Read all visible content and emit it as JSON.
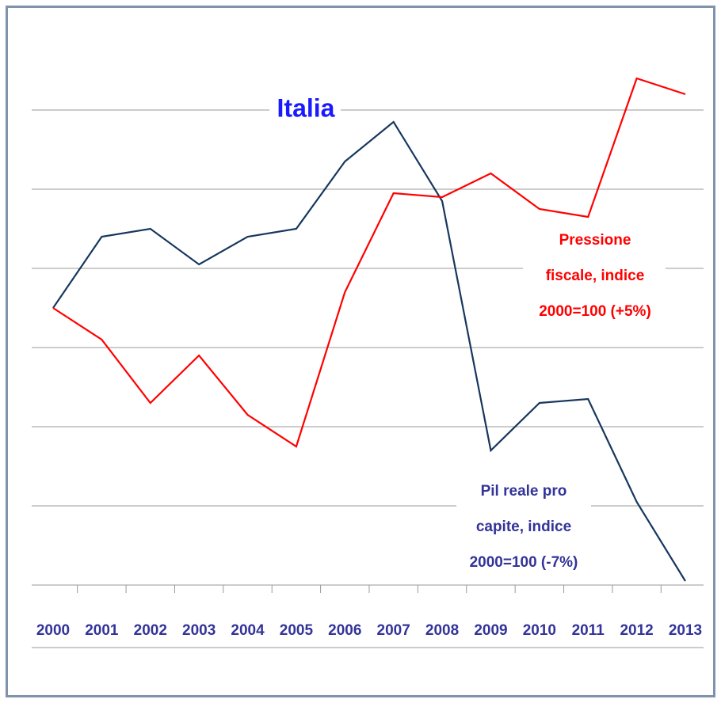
{
  "chart_data": {
    "type": "line",
    "title": "Italia",
    "categories": [
      "2000",
      "2001",
      "2002",
      "2003",
      "2004",
      "2005",
      "2006",
      "2007",
      "2008",
      "2009",
      "2010",
      "2011",
      "2012",
      "2013"
    ],
    "series": [
      {
        "color": "#17375e",
        "values": [
          100,
          101.8,
          102.0,
          101.1,
          101.8,
          102.0,
          103.7,
          104.7,
          102.7,
          96.4,
          97.6,
          97.7,
          95.1,
          93.1
        ]
      },
      {
        "color": "#ff0000",
        "values": [
          100,
          99.2,
          97.6,
          98.8,
          97.3,
          96.5,
          100.4,
          102.9,
          102.8,
          103.4,
          102.5,
          102.3,
          105.8,
          105.4
        ]
      }
    ],
    "annotations": [
      {
        "color": "#ff0000",
        "lines": [
          "Pressione",
          "fiscale, indice",
          "2000=100 (+5%)"
        ]
      },
      {
        "color": "#333399",
        "lines": [
          "Pil reale pro",
          "capite, indice",
          "2000=100 (-7%)"
        ]
      }
    ],
    "ylim": [
      93,
      107
    ],
    "yticks": [
      93,
      95,
      97,
      99,
      101,
      103,
      105
    ],
    "grid": true
  }
}
